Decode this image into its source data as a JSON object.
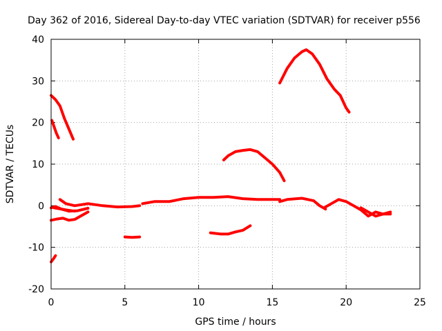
{
  "chart_data": {
    "type": "scatter",
    "title": "Day 362 of 2016, Sidereal Day-to-day VTEC variation (SDTVAR) for receiver p556",
    "xlabel": "GPS time / hours",
    "ylabel": "SDTVAR / TECUs",
    "xlim": [
      0,
      25
    ],
    "ylim": [
      -20,
      40
    ],
    "xticks": [
      0,
      5,
      10,
      15,
      20,
      25
    ],
    "yticks": [
      -20,
      -10,
      0,
      10,
      20,
      30,
      40
    ],
    "grid": true,
    "marker_color": "#ff0000",
    "series": [
      {
        "name": "arc-1",
        "points": [
          [
            0.0,
            26.5
          ],
          [
            0.3,
            25.5
          ],
          [
            0.6,
            24.0
          ],
          [
            0.9,
            21.0
          ],
          [
            1.2,
            18.5
          ],
          [
            1.5,
            16.0
          ]
        ]
      },
      {
        "name": "arc-2",
        "points": [
          [
            0.05,
            20.5
          ],
          [
            0.2,
            19.0
          ],
          [
            0.35,
            17.5
          ],
          [
            0.5,
            16.3
          ]
        ]
      },
      {
        "name": "arc-3",
        "points": [
          [
            0.0,
            -13.5
          ],
          [
            0.15,
            -12.8
          ],
          [
            0.3,
            -12.0
          ]
        ]
      },
      {
        "name": "arc-4",
        "points": [
          [
            0.0,
            -3.5
          ],
          [
            0.4,
            -3.2
          ],
          [
            0.8,
            -3.0
          ],
          [
            1.2,
            -3.5
          ],
          [
            1.6,
            -3.3
          ],
          [
            2.0,
            -2.5
          ],
          [
            2.5,
            -1.5
          ]
        ]
      },
      {
        "name": "arc-5",
        "points": [
          [
            0.0,
            -0.5
          ],
          [
            0.3,
            -0.2
          ],
          [
            0.7,
            -0.8
          ],
          [
            1.2,
            -1.3
          ],
          [
            1.8,
            -1.2
          ],
          [
            2.5,
            -0.6
          ]
        ]
      },
      {
        "name": "arc-6",
        "points": [
          [
            0.6,
            1.5
          ],
          [
            1.0,
            0.5
          ],
          [
            1.6,
            0.0
          ],
          [
            2.5,
            0.5
          ],
          [
            3.5,
            0.0
          ],
          [
            4.5,
            -0.3
          ],
          [
            5.5,
            -0.2
          ],
          [
            6.0,
            0.0
          ]
        ]
      },
      {
        "name": "arc-7",
        "points": [
          [
            0.2,
            -0.5
          ],
          [
            1.0,
            -1.0
          ],
          [
            1.6,
            -1.3
          ]
        ]
      },
      {
        "name": "arc-8",
        "points": [
          [
            5.0,
            -7.5
          ],
          [
            5.5,
            -7.6
          ],
          [
            6.0,
            -7.5
          ]
        ]
      },
      {
        "name": "arc-9",
        "points": [
          [
            6.2,
            0.5
          ],
          [
            7.0,
            1.0
          ],
          [
            8.0,
            1.0
          ],
          [
            9.0,
            1.7
          ],
          [
            10.0,
            2.0
          ],
          [
            11.0,
            2.0
          ],
          [
            12.0,
            2.2
          ],
          [
            13.0,
            1.7
          ],
          [
            14.0,
            1.5
          ],
          [
            15.0,
            1.5
          ],
          [
            15.5,
            1.5
          ]
        ]
      },
      {
        "name": "arc-10",
        "points": [
          [
            15.5,
            1.0
          ],
          [
            16.0,
            1.5
          ],
          [
            17.0,
            1.8
          ],
          [
            17.8,
            1.2
          ],
          [
            18.2,
            0.0
          ],
          [
            18.6,
            -0.8
          ]
        ]
      },
      {
        "name": "arc-11",
        "points": [
          [
            18.5,
            -0.5
          ],
          [
            19.0,
            0.5
          ],
          [
            19.5,
            1.5
          ],
          [
            20.0,
            1.0
          ],
          [
            20.5,
            0.0
          ],
          [
            21.0,
            -1.0
          ],
          [
            21.5,
            -2.5
          ],
          [
            22.0,
            -1.5
          ],
          [
            22.5,
            -2.0
          ],
          [
            23.0,
            -1.5
          ]
        ]
      },
      {
        "name": "arc-12",
        "points": [
          [
            21.0,
            -0.5
          ],
          [
            21.5,
            -1.5
          ],
          [
            22.0,
            -2.5
          ],
          [
            22.5,
            -2.0
          ],
          [
            23.0,
            -2.0
          ]
        ]
      },
      {
        "name": "arc-13",
        "points": [
          [
            10.8,
            -6.5
          ],
          [
            11.5,
            -6.8
          ],
          [
            12.0,
            -6.8
          ],
          [
            12.5,
            -6.3
          ],
          [
            13.0,
            -5.9
          ],
          [
            13.5,
            -4.8
          ]
        ]
      },
      {
        "name": "arc-14",
        "points": [
          [
            11.7,
            11.0
          ],
          [
            12.0,
            12.0
          ],
          [
            12.5,
            13.0
          ],
          [
            13.0,
            13.3
          ],
          [
            13.5,
            13.5
          ],
          [
            14.0,
            13.0
          ],
          [
            14.5,
            11.5
          ],
          [
            15.0,
            10.0
          ],
          [
            15.5,
            8.0
          ],
          [
            15.8,
            6.0
          ]
        ]
      },
      {
        "name": "arc-15",
        "points": [
          [
            15.5,
            29.5
          ],
          [
            16.0,
            33.0
          ],
          [
            16.5,
            35.5
          ],
          [
            17.0,
            37.0
          ],
          [
            17.3,
            37.5
          ],
          [
            17.7,
            36.5
          ],
          [
            18.2,
            34.0
          ],
          [
            18.7,
            30.5
          ],
          [
            19.2,
            28.0
          ],
          [
            19.6,
            26.5
          ],
          [
            20.0,
            23.5
          ],
          [
            20.2,
            22.5
          ]
        ]
      }
    ]
  }
}
